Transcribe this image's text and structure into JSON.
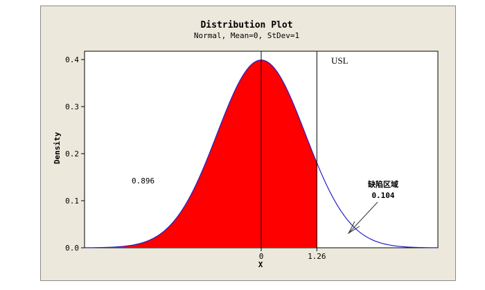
{
  "chart_data": {
    "type": "area",
    "title": "Distribution Plot",
    "subtitle": "Normal, Mean=0, StDev=1",
    "xlabel": "X",
    "ylabel": "Density",
    "distribution": {
      "name": "Normal",
      "mean": 0,
      "stdev": 1
    },
    "xlim": [
      -4,
      4
    ],
    "ylim": [
      0,
      0.4
    ],
    "yticks": [
      "0.0",
      "0.1",
      "0.2",
      "0.3",
      "0.4"
    ],
    "x_tick_labels": [
      "0",
      "1.26"
    ],
    "usl": {
      "label": "USL",
      "value": 1.26
    },
    "shaded_region": {
      "from": -4,
      "to": 1.26,
      "probability_label": "0.896"
    },
    "tail_region": {
      "label": "缺陷区域",
      "probability_label": "0.104"
    },
    "curve_color": "#2222cc",
    "fill_color": "#ff0000"
  }
}
